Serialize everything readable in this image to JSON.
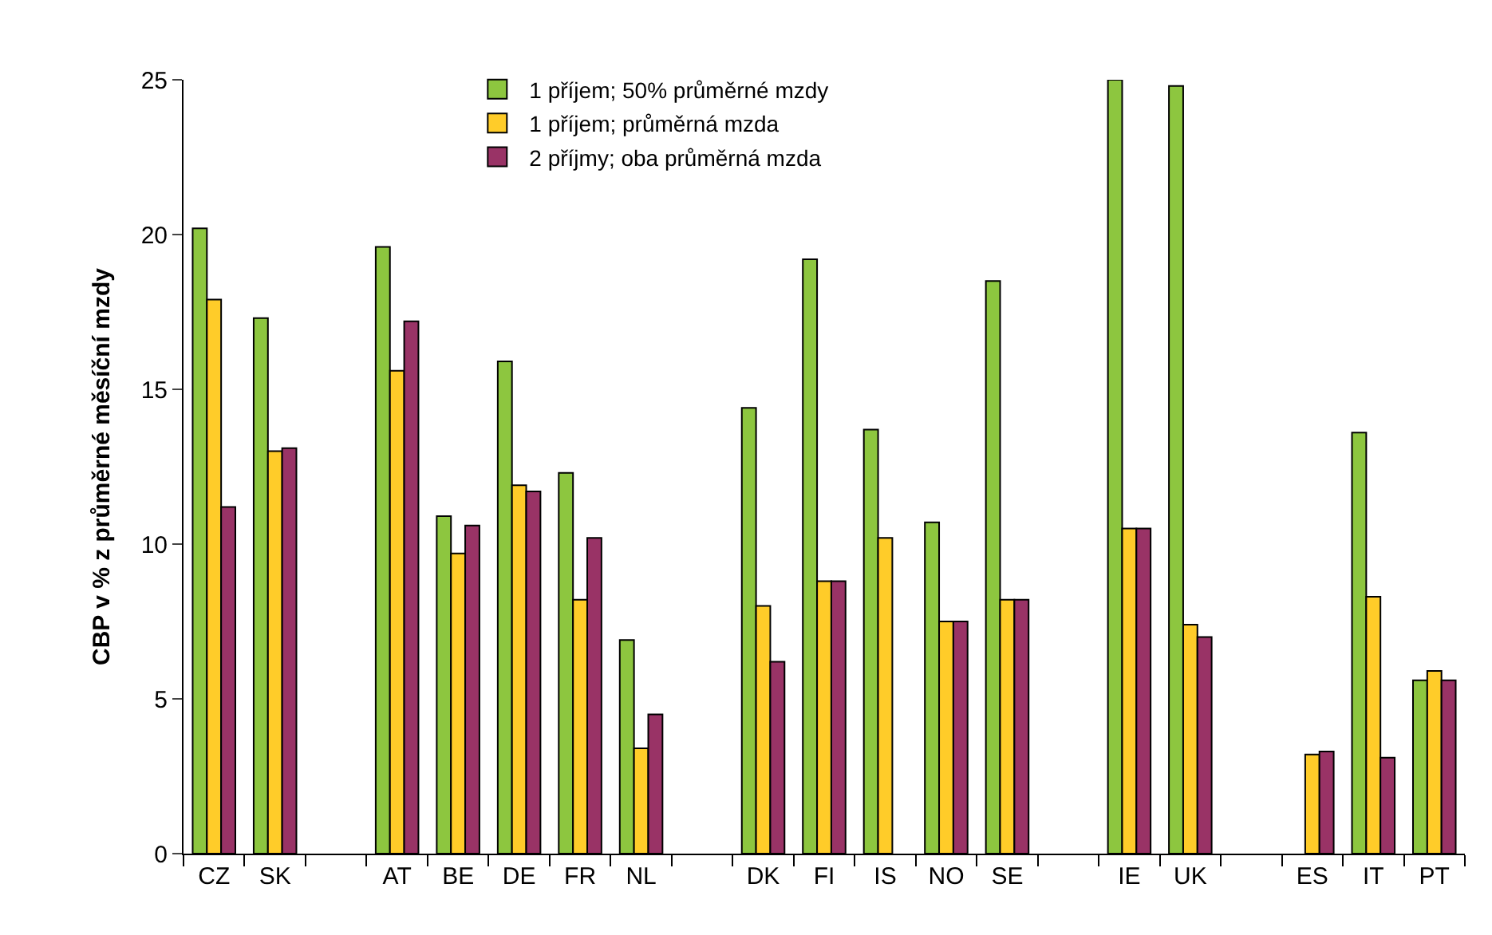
{
  "chart_data": {
    "type": "bar",
    "ylabel": "CBP v % z průměrné měsíční mzdy",
    "categories": [
      "CZ",
      "SK",
      null,
      "AT",
      "BE",
      "DE",
      "FR",
      "NL",
      null,
      "DK",
      "FI",
      "IS",
      "NO",
      "SE",
      null,
      "IE",
      "UK",
      null,
      "ES",
      "IT",
      "PT"
    ],
    "series": [
      {
        "name": "1 příjem; 50% průměrné mzdy",
        "color": "#8dc63f",
        "values": [
          20.2,
          17.3,
          null,
          19.6,
          10.9,
          15.9,
          12.3,
          6.9,
          null,
          14.4,
          19.2,
          13.7,
          10.7,
          18.5,
          null,
          25,
          24.8,
          null,
          null,
          13.6,
          5.6
        ]
      },
      {
        "name": "1 příjem; průměrná mzda",
        "color": "#ffcc29",
        "values": [
          17.9,
          13.0,
          null,
          15.6,
          9.7,
          11.9,
          8.2,
          3.4,
          null,
          8.0,
          8.8,
          10.2,
          7.5,
          8.2,
          null,
          10.5,
          7.4,
          null,
          3.2,
          8.3,
          5.9
        ]
      },
      {
        "name": "2 příjmy; oba průměrná mzda",
        "color": "#993366",
        "values": [
          11.2,
          13.1,
          null,
          17.2,
          10.6,
          11.7,
          10.2,
          4.5,
          null,
          6.2,
          8.8,
          null,
          7.5,
          8.2,
          null,
          10.5,
          7.0,
          null,
          3.3,
          3.1,
          5.6
        ]
      }
    ],
    "ylim": [
      0,
      25
    ],
    "yticks": [
      0,
      5,
      10,
      15,
      20,
      25
    ],
    "grid": false,
    "legend": "top"
  }
}
